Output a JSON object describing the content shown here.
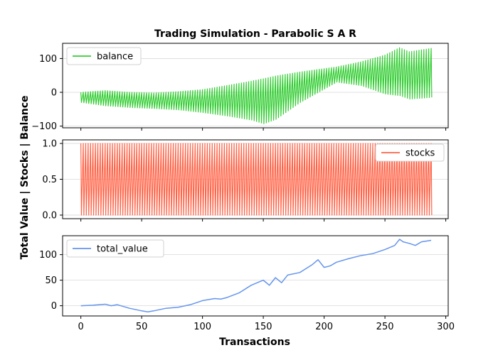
{
  "chart_data": {
    "type": "line",
    "title": "Trading Simulation - Parabolic S A R",
    "xlabel": "Transactions",
    "ylabel": "Total Value | Stocks | Balance",
    "xlim": [
      -15,
      302
    ],
    "x_ticks": [
      "0",
      "50",
      "100",
      "150",
      "200",
      "250",
      "300"
    ],
    "grid": "horizontal",
    "panels": [
      {
        "series_name": "balance",
        "color": "#32cd32",
        "legend_loc": "upper-left",
        "ylim": [
          -105,
          145
        ],
        "y_ticks": [
          "100",
          "0",
          "−100"
        ],
        "oscillating": true,
        "x": [
          0,
          20,
          40,
          60,
          80,
          100,
          120,
          140,
          150,
          160,
          180,
          200,
          210,
          230,
          250,
          262,
          270,
          288
        ],
        "upper": [
          0,
          5,
          0,
          -2,
          2,
          8,
          20,
          33,
          40,
          48,
          60,
          70,
          75,
          90,
          110,
          132,
          120,
          130
        ],
        "lower": [
          -30,
          -40,
          -45,
          -48,
          -52,
          -60,
          -70,
          -82,
          -93,
          -80,
          -30,
          10,
          30,
          20,
          -5,
          -10,
          -20,
          -15
        ]
      },
      {
        "series_name": "stocks",
        "color": "#ff6347",
        "legend_loc": "upper-right",
        "ylim": [
          -0.05,
          1.05
        ],
        "y_ticks": [
          "1.0",
          "0.5",
          "0.0"
        ],
        "oscillating": true,
        "x": [
          0,
          288
        ],
        "upper": [
          1,
          1
        ],
        "lower": [
          0,
          0
        ]
      },
      {
        "series_name": "total_value",
        "color": "#6495ed",
        "legend_loc": "upper-left",
        "ylim": [
          -20,
          137
        ],
        "y_ticks": [
          "100",
          "50",
          "0"
        ],
        "oscillating": false,
        "x": [
          0,
          10,
          20,
          25,
          30,
          40,
          50,
          55,
          60,
          70,
          80,
          90,
          100,
          110,
          115,
          120,
          130,
          140,
          150,
          155,
          160,
          165,
          170,
          180,
          190,
          195,
          200,
          205,
          210,
          220,
          230,
          240,
          250,
          258,
          262,
          265,
          270,
          275,
          280,
          288
        ],
        "values": [
          0,
          1,
          3,
          0,
          2,
          -5,
          -10,
          -12,
          -10,
          -5,
          -3,
          2,
          10,
          14,
          13,
          16,
          25,
          40,
          50,
          40,
          55,
          45,
          60,
          65,
          80,
          90,
          75,
          78,
          85,
          92,
          98,
          102,
          110,
          118,
          130,
          125,
          122,
          118,
          125,
          128
        ]
      }
    ]
  }
}
